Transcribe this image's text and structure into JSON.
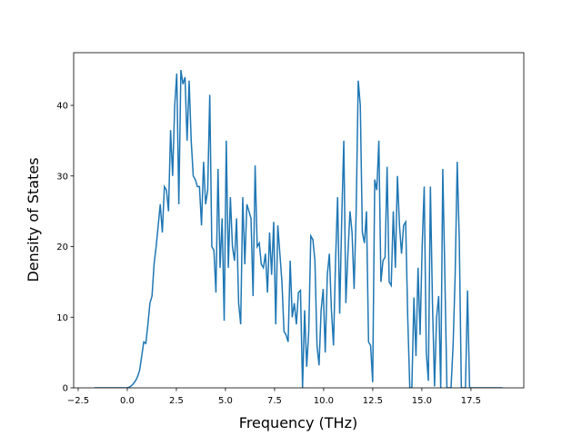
{
  "chart_data": {
    "type": "line",
    "xlabel": "Frequency (THz)",
    "ylabel": "Density of States",
    "color": "#1f77b4",
    "x": [
      -1.68,
      0,
      0.105,
      0.21,
      0.315,
      0.42,
      0.525,
      0.63,
      0.735,
      0.84,
      0.945,
      1.05,
      1.155,
      1.26,
      1.365,
      1.47,
      1.575,
      1.68,
      1.785,
      1.89,
      1.995,
      2.1,
      2.205,
      2.31,
      2.415,
      2.52,
      2.625,
      2.73,
      2.835,
      2.94,
      3.045,
      3.15,
      3.255,
      3.36,
      3.465,
      3.57,
      3.675,
      3.78,
      3.885,
      3.99,
      4.095,
      4.2,
      4.305,
      4.41,
      4.515,
      4.62,
      4.725,
      4.83,
      4.935,
      5.04,
      5.145,
      5.25,
      5.355,
      5.46,
      5.565,
      5.67,
      5.775,
      5.88,
      5.985,
      6.09,
      6.195,
      6.3,
      6.405,
      6.51,
      6.615,
      6.72,
      6.825,
      6.93,
      7.035,
      7.14,
      7.245,
      7.35,
      7.455,
      7.56,
      7.665,
      7.77,
      7.875,
      7.98,
      8.085,
      8.19,
      8.295,
      8.4,
      8.505,
      8.61,
      8.715,
      8.82,
      8.925,
      9.03,
      9.135,
      9.24,
      9.345,
      9.45,
      9.555,
      9.66,
      9.765,
      9.87,
      9.975,
      10.08,
      10.185,
      10.29,
      10.395,
      10.5,
      10.605,
      10.71,
      10.815,
      10.92,
      11.025,
      11.13,
      11.235,
      11.34,
      11.445,
      11.55,
      11.655,
      11.76,
      11.865,
      11.97,
      12.075,
      12.18,
      12.285,
      12.39,
      12.495,
      12.6,
      12.705,
      12.81,
      12.915,
      13.02,
      13.125,
      13.23,
      13.335,
      13.44,
      13.545,
      13.65,
      13.755,
      13.86,
      13.965,
      14.07,
      14.175,
      14.28,
      14.385,
      14.49,
      14.595,
      14.7,
      14.805,
      14.91,
      15.015,
      15.12,
      15.225,
      15.33,
      15.435,
      15.54,
      15.645,
      15.75,
      15.855,
      15.96,
      16.065,
      16.17,
      16.275,
      16.38,
      16.485,
      16.59,
      16.695,
      16.8,
      16.905,
      17.01,
      17.115,
      17.22,
      17.325,
      17.43,
      19.11
    ],
    "values": [
      0,
      0,
      0.1,
      0.3,
      0.6,
      1,
      1.6,
      2.5,
      4.5,
      6.5,
      6.3,
      9,
      12,
      13,
      17.5,
      20,
      23,
      26,
      22,
      28.5,
      28,
      25,
      36.5,
      30,
      40,
      44.5,
      26,
      45,
      43,
      44,
      35,
      43.5,
      35,
      30,
      29.5,
      28.5,
      28.5,
      23,
      32,
      26,
      28,
      41.5,
      20,
      19.5,
      13.5,
      31,
      17,
      24,
      9.5,
      35,
      17,
      27,
      20,
      18,
      24,
      12,
      9,
      27,
      17.5,
      26,
      25,
      24,
      13,
      31.5,
      20,
      20.5,
      17.5,
      17,
      19,
      13.5,
      22,
      16,
      23.5,
      9,
      23,
      19,
      15,
      8,
      7.5,
      6.5,
      18,
      10,
      12,
      9,
      13.5,
      13.8,
      0,
      11,
      3,
      8,
      21.5,
      21,
      18,
      6,
      3.2,
      11,
      14,
      5,
      16,
      19,
      11,
      6,
      18,
      27,
      10.5,
      24,
      35,
      12,
      19,
      25,
      22,
      14,
      25,
      43.5,
      40,
      22,
      20.5,
      25,
      6.5,
      6,
      0.8,
      29.5,
      28,
      35,
      15,
      18,
      18.5,
      31.3,
      15,
      14.5,
      25,
      17,
      30,
      23,
      19,
      23,
      23.5,
      10,
      0,
      0,
      12.8,
      4.5,
      17,
      7.5,
      20,
      28.5,
      5,
      1,
      28.5,
      12,
      0.2,
      10,
      13,
      0,
      31,
      16,
      0,
      0,
      0,
      6,
      16,
      32,
      21,
      0,
      0,
      0,
      13.8,
      0,
      0
    ],
    "xlim": [
      -2.73,
      20.19
    ],
    "ylim": [
      0,
      47.46
    ],
    "xticks": [
      {
        "value": -2.5,
        "label": "−2.5"
      },
      {
        "value": 0,
        "label": "0.0"
      },
      2.5,
      {
        "value": 5,
        "label": "5.0"
      },
      7.5,
      {
        "value": 10,
        "label": "10.0"
      },
      12.5,
      {
        "value": 15,
        "label": "15.0"
      },
      17.5
    ],
    "yticks": [
      0,
      10,
      20,
      30,
      40
    ]
  }
}
